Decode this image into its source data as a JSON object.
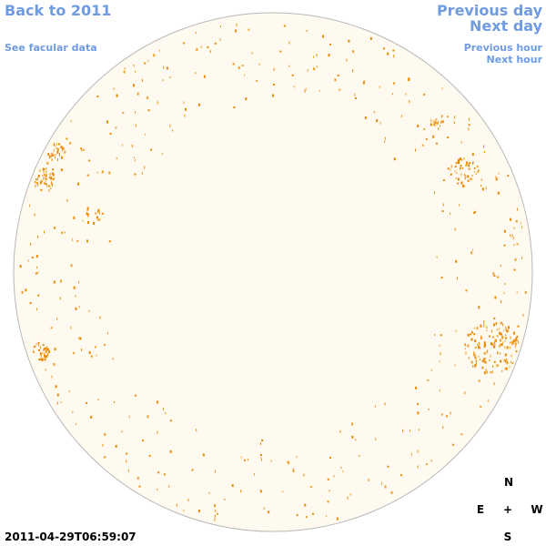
{
  "header": {
    "back_link": "Back to 2011",
    "facular_link": "See facular data",
    "prev_day": "Previous day",
    "next_day": "Next day",
    "prev_hour": "Previous hour",
    "next_hour": "Next hour"
  },
  "compass": {
    "north": "N",
    "east": "E",
    "center": "+",
    "west": "W",
    "south": "S"
  },
  "timestamp": "2011-04-29T06:59:07"
}
